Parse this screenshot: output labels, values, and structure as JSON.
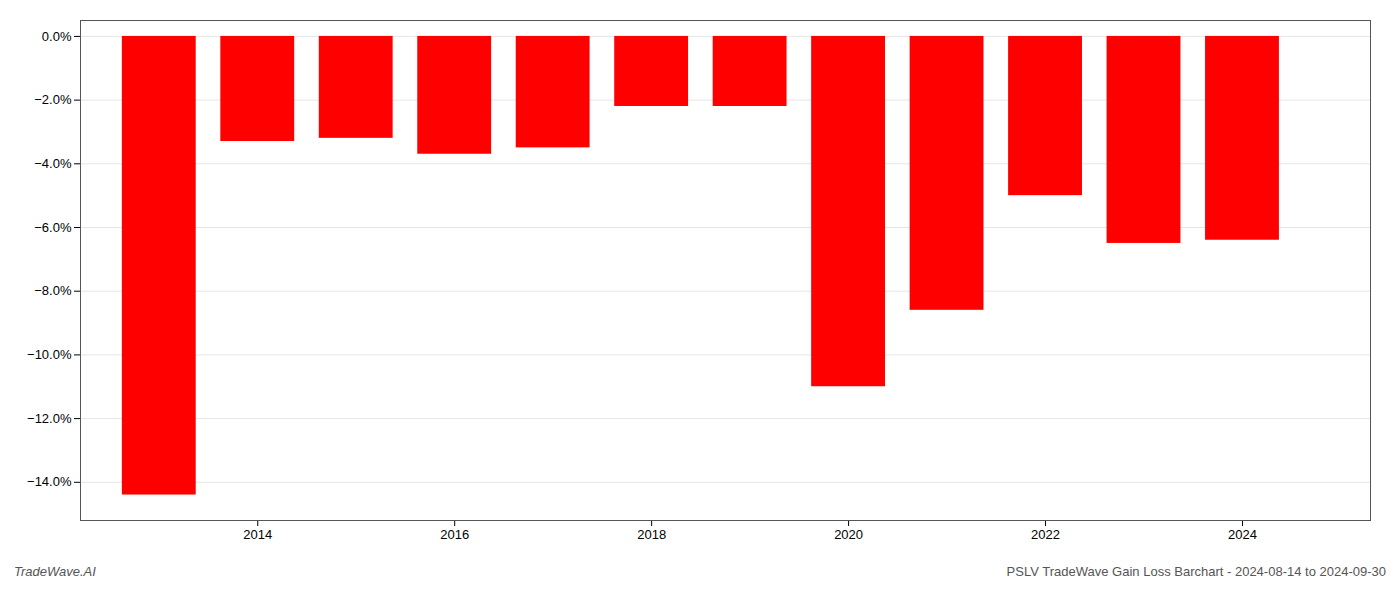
{
  "chart_data": {
    "type": "bar",
    "x": [
      2013,
      2014,
      2015,
      2016,
      2017,
      2018,
      2019,
      2020,
      2021,
      2022,
      2023,
      2024
    ],
    "values": [
      -14.4,
      -3.3,
      -3.2,
      -3.7,
      -3.5,
      -2.2,
      -2.2,
      -11.0,
      -8.6,
      -5.0,
      -6.5,
      -6.4
    ],
    "color": "#ff0000",
    "xlim": [
      2012.2,
      2025.3
    ],
    "xticks": [
      2014,
      2016,
      2018,
      2020,
      2022,
      2024
    ],
    "ylim": [
      -15.2,
      0.5
    ],
    "yticks": [
      {
        "value": 0.0,
        "label": "0.0%"
      },
      {
        "value": -2.0,
        "label": "−2.0%"
      },
      {
        "value": -4.0,
        "label": "−4.0%"
      },
      {
        "value": -6.0,
        "label": "−6.0%"
      },
      {
        "value": -8.0,
        "label": "−8.0%"
      },
      {
        "value": -10.0,
        "label": "−10.0%"
      },
      {
        "value": -12.0,
        "label": "−12.0%"
      },
      {
        "value": -14.0,
        "label": "−14.0%"
      }
    ],
    "grid": true,
    "annotations": [
      "TradeWave.AI",
      "PSLV TradeWave Gain Loss Barchart - 2024-08-14 to 2024-09-30"
    ]
  }
}
